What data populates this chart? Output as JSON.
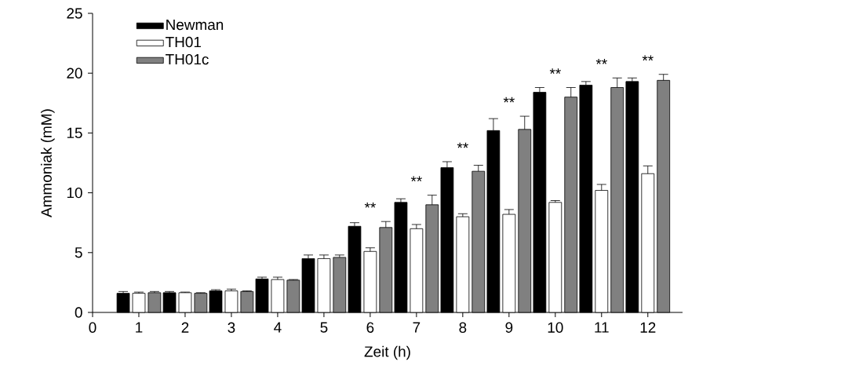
{
  "chart_data": {
    "type": "bar",
    "xlabel": "Zeit (h)",
    "ylabel": "Ammoniak (mM)",
    "x": [
      1,
      2,
      3,
      4,
      5,
      6,
      7,
      8,
      9,
      10,
      11,
      12
    ],
    "xlim": [
      0,
      12.75
    ],
    "xticks": [
      0,
      1,
      2,
      3,
      4,
      5,
      6,
      7,
      8,
      9,
      10,
      11,
      12
    ],
    "ylim": [
      0,
      25
    ],
    "yticks": [
      0,
      5,
      10,
      15,
      20,
      25
    ],
    "legend": "top left",
    "series": [
      {
        "name": "Newman",
        "color": "#000000",
        "values": [
          1.6,
          1.65,
          1.8,
          2.8,
          4.5,
          7.2,
          9.2,
          12.1,
          15.2,
          18.4,
          19.0,
          19.3
        ],
        "errors": [
          0.15,
          0.1,
          0.1,
          0.15,
          0.3,
          0.3,
          0.3,
          0.5,
          1.0,
          0.4,
          0.3,
          0.3
        ]
      },
      {
        "name": "TH01",
        "color": "#ffffff",
        "values": [
          1.6,
          1.65,
          1.8,
          2.75,
          4.5,
          5.1,
          7.0,
          8.0,
          8.2,
          9.2,
          10.2,
          11.6
        ],
        "errors": [
          0.1,
          0.05,
          0.15,
          0.2,
          0.3,
          0.3,
          0.35,
          0.25,
          0.4,
          0.15,
          0.5,
          0.65
        ]
      },
      {
        "name": "TH01c",
        "color": "#808080",
        "values": [
          1.65,
          1.6,
          1.75,
          2.7,
          4.6,
          7.1,
          9.0,
          11.8,
          15.3,
          18.0,
          18.8,
          19.4
        ],
        "errors": [
          0.1,
          0.05,
          0.05,
          0.05,
          0.2,
          0.5,
          0.8,
          0.5,
          1.1,
          0.8,
          0.8,
          0.5
        ]
      }
    ],
    "annotations": [
      "**",
      "**",
      "**",
      "**",
      "**",
      "**",
      "**"
    ]
  }
}
